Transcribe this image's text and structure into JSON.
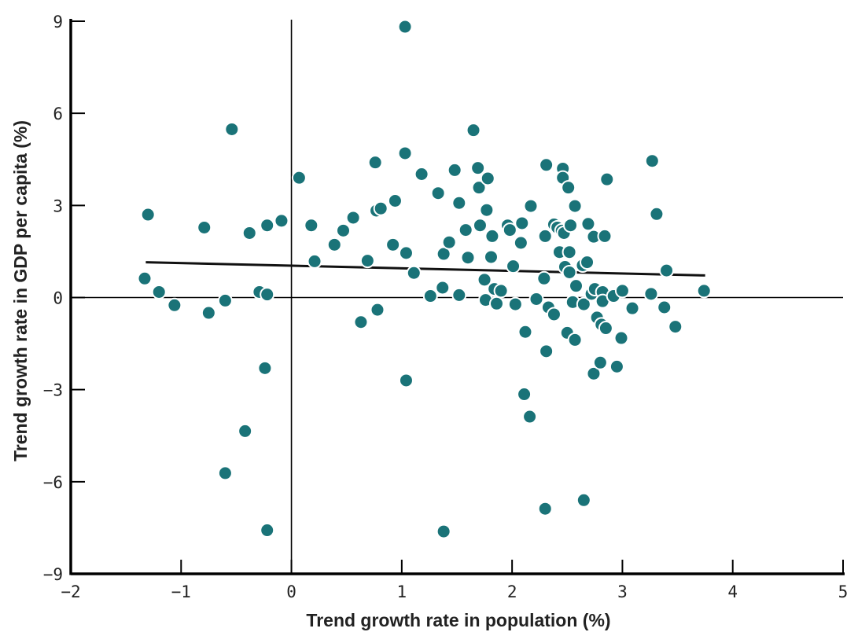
{
  "chart_data": {
    "type": "scatter",
    "xlabel": "Trend growth rate in population (%)",
    "ylabel": "Trend growth rate in GDP per capita (%)",
    "xlim": [
      -2,
      5
    ],
    "ylim": [
      -9,
      9
    ],
    "x_ticks": [
      -2,
      -1,
      0,
      1,
      2,
      3,
      4,
      5
    ],
    "x_tick_labels": [
      "−2",
      "−1",
      "0",
      "1",
      "2",
      "3",
      "4",
      "5"
    ],
    "y_ticks": [
      -9,
      -6,
      -3,
      0,
      3,
      6,
      9
    ],
    "y_tick_labels": [
      "−9",
      "−6",
      "−3",
      "0",
      "3",
      "6",
      "9"
    ],
    "colors": {
      "points": "#1a7378",
      "point_edge": "#ffffff",
      "axis": "#000000",
      "trend": "#111111"
    },
    "trend_line": {
      "x": [
        -1.32,
        3.75
      ],
      "y": [
        1.15,
        0.72
      ]
    },
    "points": [
      {
        "x": -1.33,
        "y": 0.62
      },
      {
        "x": -1.3,
        "y": 2.7
      },
      {
        "x": -1.2,
        "y": 0.18
      },
      {
        "x": -1.06,
        "y": -0.25
      },
      {
        "x": -0.79,
        "y": 2.28
      },
      {
        "x": -0.75,
        "y": -0.5
      },
      {
        "x": -0.6,
        "y": -0.1
      },
      {
        "x": -0.54,
        "y": 5.48
      },
      {
        "x": -0.38,
        "y": 2.1
      },
      {
        "x": -0.29,
        "y": 0.18
      },
      {
        "x": -0.24,
        "y": -2.3
      },
      {
        "x": -0.22,
        "y": 2.35
      },
      {
        "x": -0.22,
        "y": 0.1
      },
      {
        "x": -0.42,
        "y": -4.35
      },
      {
        "x": -0.6,
        "y": -5.72
      },
      {
        "x": -0.22,
        "y": -7.58
      },
      {
        "x": -0.09,
        "y": 2.5
      },
      {
        "x": 0.07,
        "y": 3.9
      },
      {
        "x": 0.18,
        "y": 2.35
      },
      {
        "x": 0.21,
        "y": 1.18
      },
      {
        "x": 0.39,
        "y": 1.72
      },
      {
        "x": 0.47,
        "y": 2.18
      },
      {
        "x": 0.56,
        "y": 2.6
      },
      {
        "x": 0.63,
        "y": -0.8
      },
      {
        "x": 0.69,
        "y": 1.2
      },
      {
        "x": 0.76,
        "y": 4.4
      },
      {
        "x": 0.77,
        "y": 2.83
      },
      {
        "x": 0.78,
        "y": -0.4
      },
      {
        "x": 0.81,
        "y": 2.9
      },
      {
        "x": 0.92,
        "y": 1.72
      },
      {
        "x": 0.94,
        "y": 3.15
      },
      {
        "x": 1.03,
        "y": 8.82
      },
      {
        "x": 1.03,
        "y": 4.7
      },
      {
        "x": 1.04,
        "y": 1.45
      },
      {
        "x": 1.04,
        "y": -2.7
      },
      {
        "x": 1.11,
        "y": 0.8
      },
      {
        "x": 1.18,
        "y": 4.02
      },
      {
        "x": 1.26,
        "y": 0.05
      },
      {
        "x": 1.33,
        "y": 3.4
      },
      {
        "x": 1.37,
        "y": 0.32
      },
      {
        "x": 1.38,
        "y": 1.42
      },
      {
        "x": 1.43,
        "y": 1.8
      },
      {
        "x": 1.38,
        "y": -7.62
      },
      {
        "x": 1.48,
        "y": 4.15
      },
      {
        "x": 1.52,
        "y": 3.08
      },
      {
        "x": 1.52,
        "y": 0.08
      },
      {
        "x": 1.58,
        "y": 2.2
      },
      {
        "x": 1.6,
        "y": 1.3
      },
      {
        "x": 1.65,
        "y": 5.45
      },
      {
        "x": 1.69,
        "y": 4.22
      },
      {
        "x": 1.7,
        "y": 3.58
      },
      {
        "x": 1.71,
        "y": 2.35
      },
      {
        "x": 1.75,
        "y": 0.58
      },
      {
        "x": 1.76,
        "y": -0.08
      },
      {
        "x": 1.77,
        "y": 2.85
      },
      {
        "x": 1.78,
        "y": 3.88
      },
      {
        "x": 1.81,
        "y": 1.32
      },
      {
        "x": 1.82,
        "y": 2.0
      },
      {
        "x": 1.84,
        "y": 0.28
      },
      {
        "x": 1.86,
        "y": -0.2
      },
      {
        "x": 1.9,
        "y": 0.22
      },
      {
        "x": 1.96,
        "y": 2.35
      },
      {
        "x": 1.98,
        "y": 2.2
      },
      {
        "x": 2.01,
        "y": 1.02
      },
      {
        "x": 2.03,
        "y": -0.22
      },
      {
        "x": 2.08,
        "y": 1.78
      },
      {
        "x": 2.09,
        "y": 2.42
      },
      {
        "x": 2.11,
        "y": -3.15
      },
      {
        "x": 2.12,
        "y": -1.12
      },
      {
        "x": 2.16,
        "y": -3.88
      },
      {
        "x": 2.17,
        "y": 2.98
      },
      {
        "x": 2.22,
        "y": -0.05
      },
      {
        "x": 2.29,
        "y": 0.62
      },
      {
        "x": 2.3,
        "y": 2.0
      },
      {
        "x": 2.31,
        "y": 4.32
      },
      {
        "x": 2.31,
        "y": -1.75
      },
      {
        "x": 2.33,
        "y": -0.32
      },
      {
        "x": 2.3,
        "y": -6.88
      },
      {
        "x": 2.38,
        "y": 2.38
      },
      {
        "x": 2.38,
        "y": -0.55
      },
      {
        "x": 2.41,
        "y": 2.28
      },
      {
        "x": 2.43,
        "y": 1.48
      },
      {
        "x": 2.45,
        "y": 2.18
      },
      {
        "x": 2.46,
        "y": 4.2
      },
      {
        "x": 2.46,
        "y": 3.9
      },
      {
        "x": 2.47,
        "y": 2.1
      },
      {
        "x": 2.48,
        "y": 1.0
      },
      {
        "x": 2.5,
        "y": -1.15
      },
      {
        "x": 2.51,
        "y": 3.58
      },
      {
        "x": 2.52,
        "y": 1.48
      },
      {
        "x": 2.52,
        "y": 0.82
      },
      {
        "x": 2.53,
        "y": 2.35
      },
      {
        "x": 2.55,
        "y": -0.15
      },
      {
        "x": 2.57,
        "y": 2.98
      },
      {
        "x": 2.57,
        "y": -1.38
      },
      {
        "x": 2.58,
        "y": 0.38
      },
      {
        "x": 2.64,
        "y": 1.05
      },
      {
        "x": 2.65,
        "y": -0.22
      },
      {
        "x": 2.65,
        "y": -6.6
      },
      {
        "x": 2.68,
        "y": 1.15
      },
      {
        "x": 2.69,
        "y": 2.4
      },
      {
        "x": 2.72,
        "y": 0.12
      },
      {
        "x": 2.74,
        "y": 1.98
      },
      {
        "x": 2.74,
        "y": -2.48
      },
      {
        "x": 2.75,
        "y": 0.28
      },
      {
        "x": 2.77,
        "y": -0.65
      },
      {
        "x": 2.8,
        "y": -2.12
      },
      {
        "x": 2.81,
        "y": -0.88
      },
      {
        "x": 2.82,
        "y": 0.18
      },
      {
        "x": 2.82,
        "y": -0.12
      },
      {
        "x": 2.84,
        "y": 2.0
      },
      {
        "x": 2.85,
        "y": -1.0
      },
      {
        "x": 2.86,
        "y": 3.85
      },
      {
        "x": 2.92,
        "y": 0.05
      },
      {
        "x": 2.95,
        "y": -2.25
      },
      {
        "x": 2.99,
        "y": -1.32
      },
      {
        "x": 3.0,
        "y": 0.22
      },
      {
        "x": 3.09,
        "y": -0.35
      },
      {
        "x": 3.26,
        "y": 0.12
      },
      {
        "x": 3.27,
        "y": 4.45
      },
      {
        "x": 3.31,
        "y": 2.72
      },
      {
        "x": 3.38,
        "y": -0.32
      },
      {
        "x": 3.4,
        "y": 0.88
      },
      {
        "x": 3.48,
        "y": -0.95
      },
      {
        "x": 3.74,
        "y": 0.22
      }
    ]
  }
}
